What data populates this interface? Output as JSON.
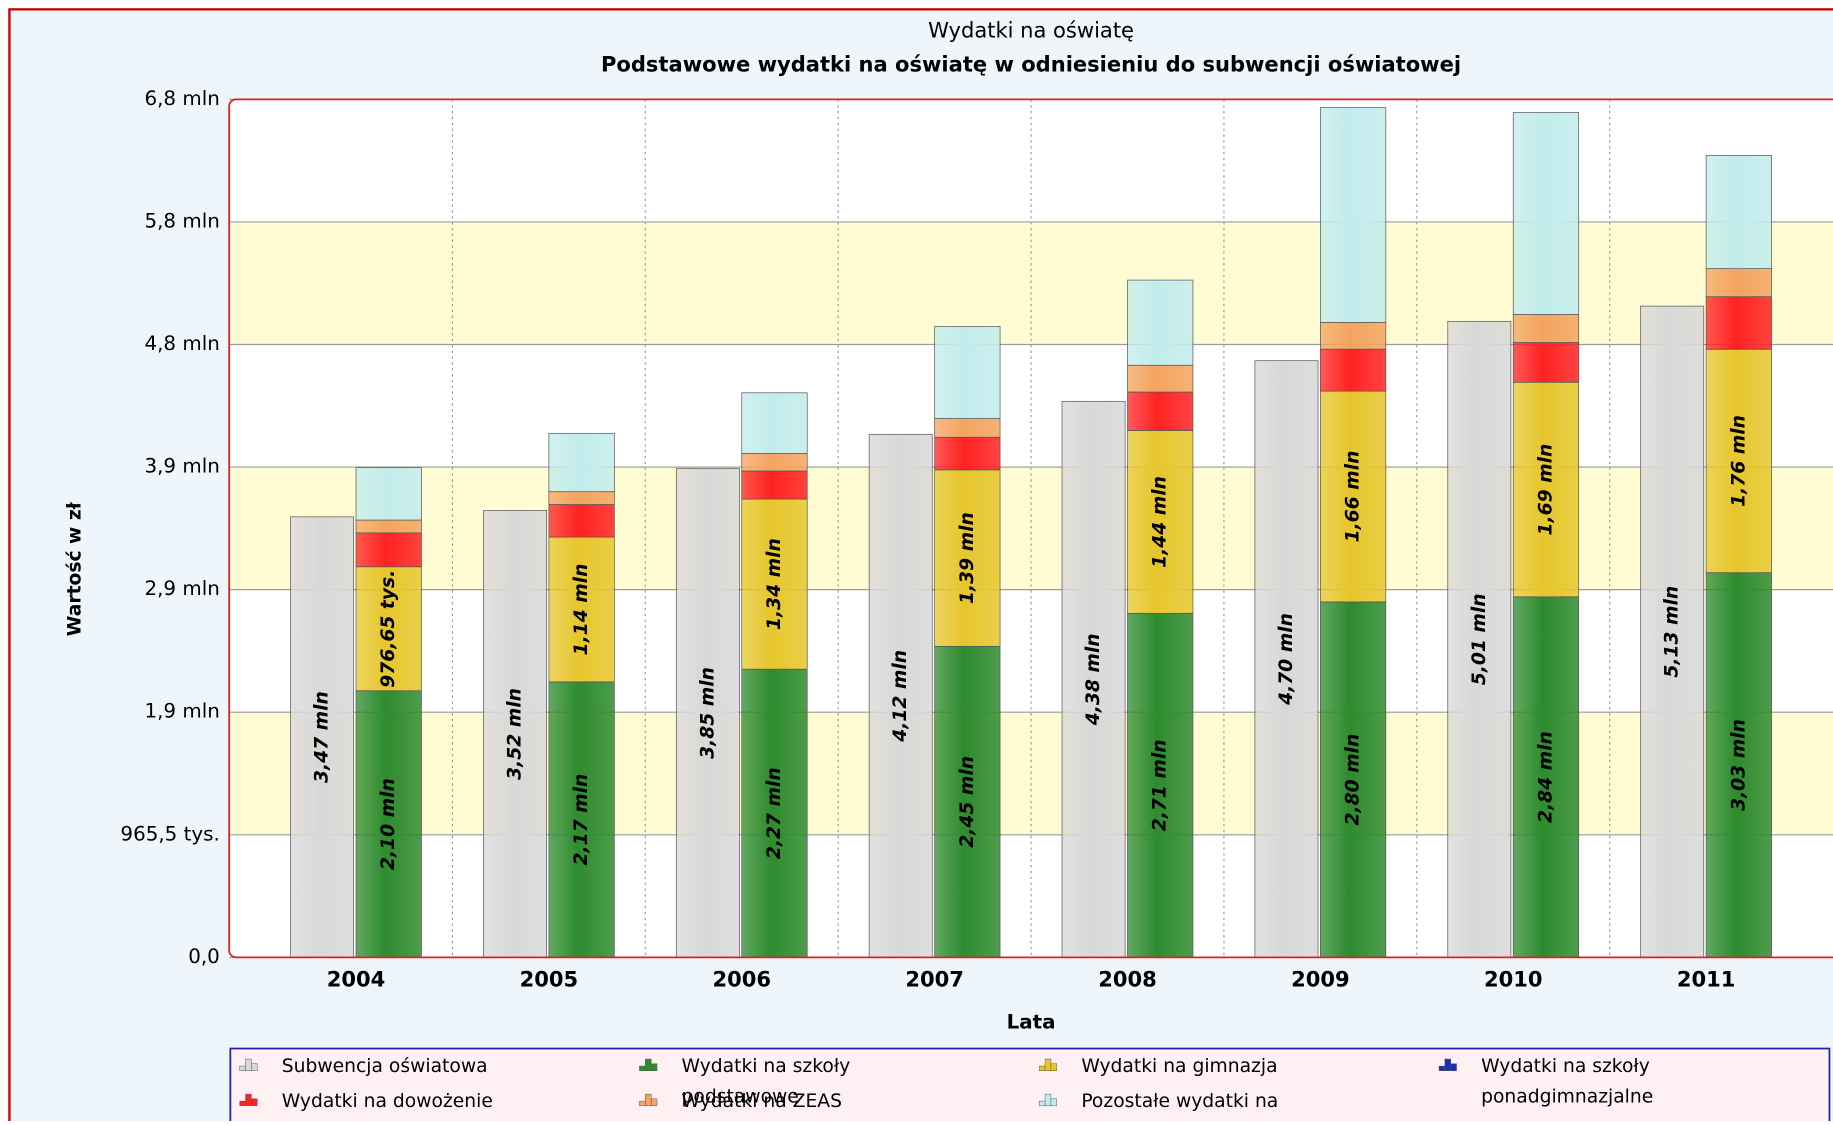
{
  "chart_data": {
    "type": "bar",
    "title": "Wydatki na oświatę",
    "subtitle": "Podstawowe wydatki na oświatę w odniesieniu do subwencji oświatowej",
    "x_label": "Lata",
    "y_label": "Wartość w zł",
    "categories": [
      "2004",
      "2005",
      "2006",
      "2007",
      "2008",
      "2009",
      "2010",
      "2011"
    ],
    "ylim": [
      0,
      6758500
    ],
    "yticks": [
      {
        "value": 0,
        "label": "0,0"
      },
      {
        "value": 965500,
        "label": "965,5 tys."
      },
      {
        "value": 1931000,
        "label": "1,9 mln"
      },
      {
        "value": 2896500,
        "label": "2,9 mln"
      },
      {
        "value": 3862000,
        "label": "3,9 mln"
      },
      {
        "value": 4827500,
        "label": "4,8 mln"
      },
      {
        "value": 5793000,
        "label": "5,8 mln"
      },
      {
        "value": 6758500,
        "label": "6,8 mln"
      }
    ],
    "series": [
      {
        "name": "Subwencja oświatowa",
        "color": "#d8d8d8",
        "values": [
          3470000,
          3520000,
          3850000,
          4120000,
          4380000,
          4700000,
          5010000,
          5130000
        ],
        "value_labels": [
          "3,47 mln",
          "3,52 mln",
          "3,85 mln",
          "4,12 mln",
          "4,38 mln",
          "4,70 mln",
          "5,01 mln",
          "5,13 mln"
        ]
      },
      {
        "name": "Wydatki na szkoły podstawowe",
        "color": "#2e8b2e",
        "values": [
          2100000,
          2170000,
          2270000,
          2450000,
          2710000,
          2800000,
          2840000,
          3030000
        ],
        "value_labels": [
          "2,10 mln",
          "2,17 mln",
          "2,27 mln",
          "2,45 mln",
          "2,71 mln",
          "2,80 mln",
          "2,84 mln",
          "3,03 mln"
        ]
      },
      {
        "name": "Wydatki na gimnazja",
        "color": "#e6c62c",
        "values": [
          976650,
          1140000,
          1340000,
          1390000,
          1440000,
          1660000,
          1690000,
          1760000
        ],
        "value_labels": [
          "976,65 tys.",
          "1,14 mln",
          "1,34 mln",
          "1,39 mln",
          "1,44 mln",
          "1,66 mln",
          "1,69 mln",
          "1,76 mln"
        ]
      },
      {
        "name": "Wydatki na szkoły ponadgimnazjalne",
        "color": "#1f2fb0",
        "values": [
          0,
          0,
          0,
          0,
          0,
          0,
          0,
          0
        ]
      },
      {
        "name": "Wydatki na dowożenie uczniów",
        "color": "#ff2222",
        "values": [
          267000,
          257000,
          221000,
          257000,
          303000,
          331000,
          313000,
          414000
        ]
      },
      {
        "name": "Wydatki na ZEAS",
        "color": "#f4a460",
        "values": [
          101000,
          101000,
          138000,
          147000,
          211000,
          211000,
          221000,
          221000
        ]
      },
      {
        "name": "Pozostałe wydatki na oswiatę",
        "color": "#c2ecec",
        "values": [
          414000,
          460000,
          478000,
          726000,
          671000,
          1692000,
          1591000,
          892000
        ]
      }
    ],
    "grid": true
  }
}
